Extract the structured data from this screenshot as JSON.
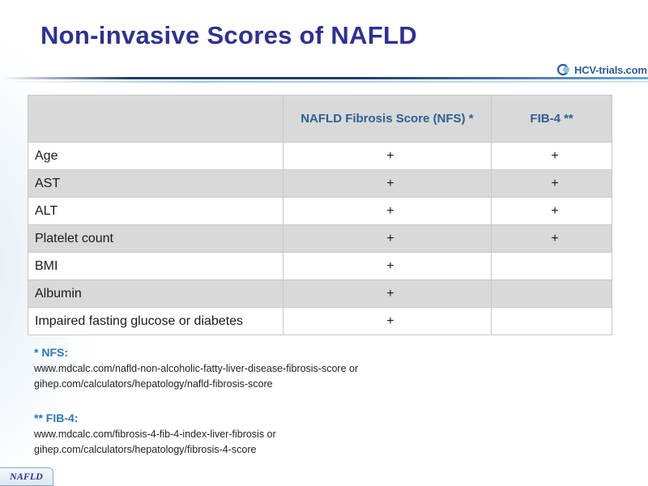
{
  "slide": {
    "title": "Non-invasive Scores of NAFLD",
    "logo_text": "HCV-trials.com",
    "footer_tag": "NAFLD"
  },
  "table": {
    "headers": [
      "",
      "NAFLD Fibrosis Score (NFS) *",
      "FIB-4 **"
    ],
    "rows": [
      {
        "param": "Age",
        "nfs": "+",
        "fib4": "+"
      },
      {
        "param": "AST",
        "nfs": "+",
        "fib4": "+"
      },
      {
        "param": "ALT",
        "nfs": "+",
        "fib4": "+"
      },
      {
        "param": "Platelet count",
        "nfs": "+",
        "fib4": "+"
      },
      {
        "param": "BMI",
        "nfs": "+",
        "fib4": ""
      },
      {
        "param": "Albumin",
        "nfs": "+",
        "fib4": ""
      },
      {
        "param": "Impaired fasting glucose or diabetes",
        "nfs": "+",
        "fib4": ""
      }
    ]
  },
  "notes": [
    {
      "heading": "* NFS:",
      "lines": [
        "www.mdcalc.com/nafld-non-alcoholic-fatty-liver-disease-fibrosis-score or",
        "gihep.com/calculators/hepatology/nafld-fibrosis-score"
      ]
    },
    {
      "heading": "** FIB-4:",
      "lines": [
        "www.mdcalc.com/fibrosis-4-fib-4-index-liver-fibrosis or",
        "gihep.com/calculators/hepatology/fibrosis-4-score"
      ]
    }
  ],
  "colors": {
    "title": "#2e3192",
    "header_text": "#2c5f94",
    "note_heading": "#2c77bd",
    "shaded_row": "#d9d9d9"
  },
  "icons": {
    "logo": "hcv-trials-logo-icon"
  }
}
